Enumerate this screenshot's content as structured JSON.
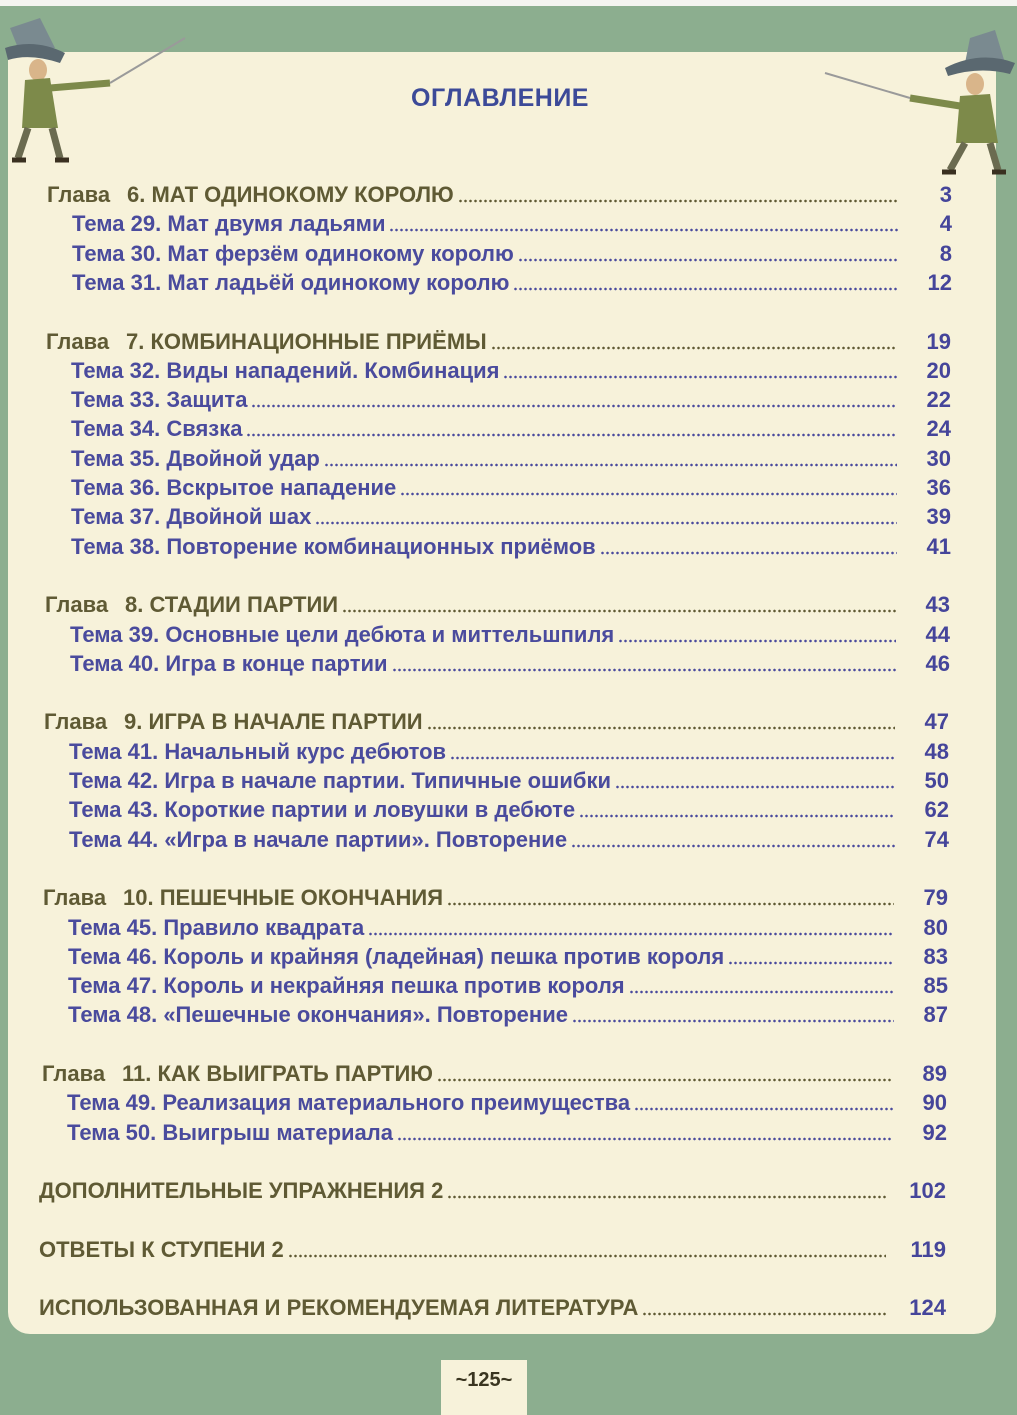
{
  "title": "ОГЛАВЛЕНИЕ",
  "chapters": [
    {
      "prefix": "Глава",
      "title": "6. МАТ ОДИНОКОМУ КОРОЛЮ",
      "page": "3",
      "topics": [
        {
          "label": "Тема 29. Мат двумя ладьями",
          "page": "4"
        },
        {
          "label": "Тема 30. Мат ферзём одинокому королю",
          "page": "8"
        },
        {
          "label": "Тема 31. Мат ладьёй одинокому королю",
          "page": "12"
        }
      ]
    },
    {
      "prefix": "Глава",
      "title": "7. КОМБИНАЦИОННЫЕ ПРИЁМЫ",
      "page": "19",
      "topics": [
        {
          "label": "Тема 32. Виды нападений. Комбинация",
          "page": "20"
        },
        {
          "label": "Тема 33. Защита",
          "page": "22"
        },
        {
          "label": "Тема 34. Связка",
          "page": "24"
        },
        {
          "label": "Тема 35. Двойной удар",
          "page": "30"
        },
        {
          "label": "Тема 36. Вскрытое нападение",
          "page": "36"
        },
        {
          "label": "Тема 37. Двойной шах",
          "page": "39"
        },
        {
          "label": "Тема 38. Повторение комбинационных приёмов",
          "page": "41"
        }
      ]
    },
    {
      "prefix": "Глава",
      "title": "8. СТАДИИ ПАРТИИ",
      "page": "43",
      "topics": [
        {
          "label": "Тема 39. Основные цели дебюта и миттельшпиля",
          "page": "44"
        },
        {
          "label": "Тема 40. Игра в конце партии",
          "page": "46"
        }
      ]
    },
    {
      "prefix": "Глава",
      "title": "9. ИГРА В НАЧАЛЕ ПАРТИИ",
      "page": "47",
      "topics": [
        {
          "label": "Тема 41. Начальный курс дебютов",
          "page": "48"
        },
        {
          "label": "Тема 42. Игра в начале партии. Типичные ошибки",
          "page": "50"
        },
        {
          "label": "Тема 43. Короткие партии и ловушки в дебюте",
          "page": "62"
        },
        {
          "label": "Тема 44. «Игра в начале партии». Повторение",
          "page": "74"
        }
      ]
    },
    {
      "prefix": "Глава",
      "title": "10. ПЕШЕЧНЫЕ ОКОНЧАНИЯ",
      "page": "79",
      "topics": [
        {
          "label": "Тема 45. Правило квадрата",
          "page": "80"
        },
        {
          "label": "Тема 46. Король и крайняя (ладейная) пешка против короля",
          "page": "83"
        },
        {
          "label": "Тема 47. Король и некрайняя пешка против короля",
          "page": "85"
        },
        {
          "label": "Тема 48. «Пешечные окончания». Повторение",
          "page": "87"
        }
      ]
    },
    {
      "prefix": "Глава",
      "title": "11. КАК ВЫИГРАТЬ ПАРТИЮ",
      "page": "89",
      "topics": [
        {
          "label": "Тема 49. Реализация материального преимущества",
          "page": "90"
        },
        {
          "label": "Тема 50. Выигрыш материала",
          "page": "92"
        }
      ]
    }
  ],
  "back_matter": [
    {
      "label": "ДОПОЛНИТЕЛЬНЫЕ УПРАЖНЕНИЯ 2",
      "page": "102"
    },
    {
      "label": "ОТВЕТЫ К СТУПЕНИ 2",
      "page": "119"
    },
    {
      "label": "ИСПОЛЬЗОВАННАЯ И РЕКОМЕНДУЕМАЯ ЛИТЕРАТУРА",
      "page": "124"
    }
  ],
  "page_number": "~125~",
  "colors": {
    "background": "#8cae8f",
    "card": "#f7f2da",
    "chapter_text": "#5f5a34",
    "topic_text": "#4a4b9d",
    "title": "#3c4a98"
  },
  "decorations": [
    "musketeer-left-illustration",
    "musketeer-right-illustration"
  ]
}
